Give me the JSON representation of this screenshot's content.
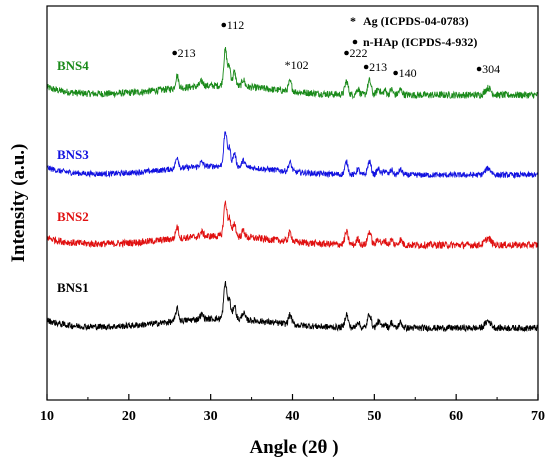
{
  "chart_data": {
    "type": "line",
    "xlabel": "Angle (2θ )",
    "ylabel": "Intensity (a.u.)",
    "xlim": [
      10,
      70
    ],
    "xticks": [
      10,
      20,
      30,
      40,
      50,
      60,
      70
    ],
    "legend_placement": "top-right",
    "legend": [
      {
        "symbol": "*",
        "text": "Ag (ICPDS-04-0783)"
      },
      {
        "symbol": "•",
        "text": "n-HAp (ICPDS-4-932)"
      }
    ],
    "series": [
      {
        "name": "BNS4",
        "color": "#1a8a1a",
        "baseline": 120,
        "noise": 1.0,
        "amp": 1.0
      },
      {
        "name": "BNS3",
        "color": "#1212e0",
        "baseline": 82,
        "noise": 0.8,
        "amp": 0.95
      },
      {
        "name": "BNS2",
        "color": "#e01010",
        "baseline": 40,
        "noise": 1.0,
        "amp": 0.95
      },
      {
        "name": "BNS1",
        "color": "#000000",
        "baseline": 0,
        "noise": 0.9,
        "amp": 1.0
      }
    ],
    "peaks": [
      {
        "x": 25.9,
        "h": 16,
        "w": 0.25
      },
      {
        "x": 28.9,
        "h": 6,
        "w": 0.3
      },
      {
        "x": 31.8,
        "h": 46,
        "w": 0.28
      },
      {
        "x": 32.3,
        "h": 24,
        "w": 0.22
      },
      {
        "x": 32.9,
        "h": 18,
        "w": 0.25
      },
      {
        "x": 34.0,
        "h": 9,
        "w": 0.25
      },
      {
        "x": 39.7,
        "h": 12,
        "w": 0.28
      },
      {
        "x": 46.6,
        "h": 17,
        "w": 0.28
      },
      {
        "x": 48.0,
        "h": 8,
        "w": 0.25
      },
      {
        "x": 49.4,
        "h": 18,
        "w": 0.3
      },
      {
        "x": 50.5,
        "h": 8,
        "w": 0.3
      },
      {
        "x": 51.3,
        "h": 6,
        "w": 0.25
      },
      {
        "x": 52.1,
        "h": 7,
        "w": 0.25
      },
      {
        "x": 53.2,
        "h": 7,
        "w": 0.3
      },
      {
        "x": 63.9,
        "h": 9,
        "w": 0.5
      }
    ],
    "background_hump": {
      "center": 31,
      "height": 12,
      "width": 9
    },
    "annotations": [
      {
        "symbol": "•",
        "text": "213",
        "x": 25.6,
        "offset": 38
      },
      {
        "symbol": "•",
        "text": "112",
        "x": 31.6,
        "offset": 66
      },
      {
        "symbol": "*",
        "text": "102",
        "x": 39.4,
        "offset": 26
      },
      {
        "symbol": "•",
        "text": "222",
        "x": 46.6,
        "offset": 38
      },
      {
        "symbol": "•",
        "text": "213",
        "x": 49.0,
        "offset": 24
      },
      {
        "symbol": "•",
        "text": "140",
        "x": 52.6,
        "offset": 18
      },
      {
        "symbol": "•",
        "text": "304",
        "x": 62.8,
        "offset": 22
      }
    ]
  }
}
